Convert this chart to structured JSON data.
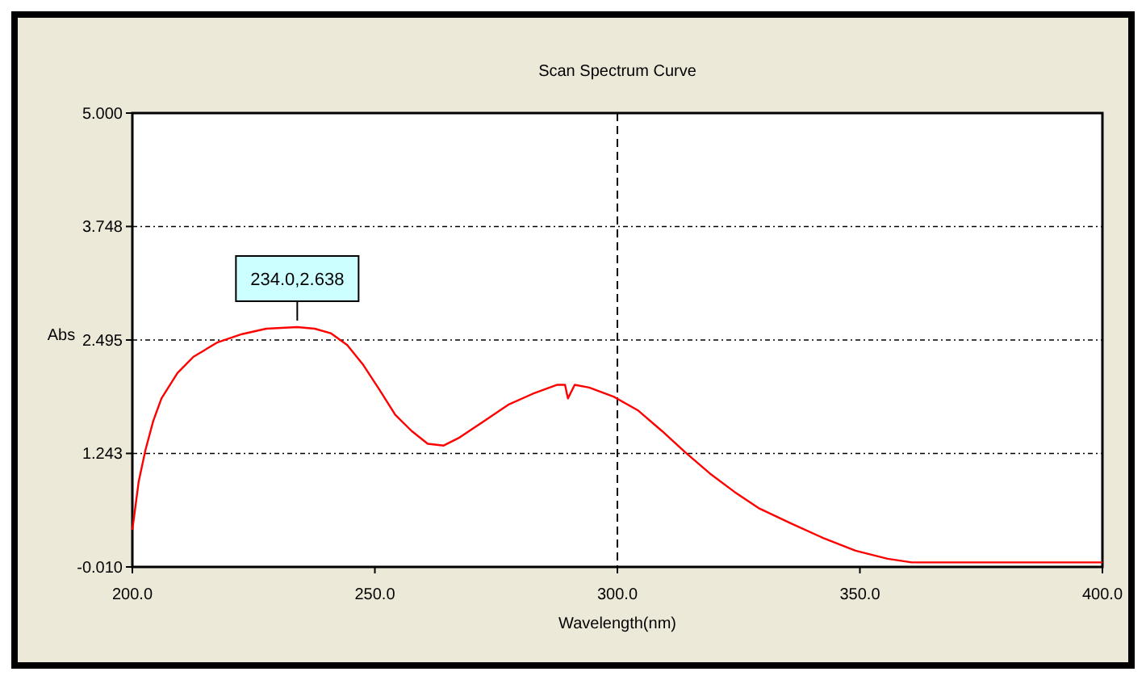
{
  "chart_data": {
    "type": "line",
    "title": "Scan Spectrum Curve",
    "xlabel": "Wavelength(nm)",
    "ylabel": "Abs",
    "x": [
      200,
      201.3,
      202.7,
      204.3,
      206,
      209.3,
      212.6,
      217.6,
      222.6,
      227.6,
      234,
      237.6,
      240.9,
      244.3,
      247.6,
      250.9,
      254.2,
      257.6,
      260.9,
      264.2,
      267.5,
      272.5,
      277.5,
      282.5,
      287.5,
      289.2,
      289.8,
      291.2,
      294.2,
      299.2,
      304.2,
      309.2,
      314.1,
      319.1,
      324.1,
      329.1,
      335.8,
      342.4,
      349.1,
      355.7,
      360.7,
      365.7,
      372.4,
      385.7,
      400
    ],
    "series": [
      {
        "color": "#ff0000",
        "values": [
          0.4,
          0.93,
          1.28,
          1.6,
          1.85,
          2.13,
          2.31,
          2.47,
          2.56,
          2.62,
          2.638,
          2.62,
          2.57,
          2.44,
          2.22,
          1.95,
          1.67,
          1.49,
          1.35,
          1.33,
          1.42,
          1.6,
          1.78,
          1.9,
          2.0,
          2.0,
          1.85,
          2.0,
          1.97,
          1.87,
          1.72,
          1.49,
          1.25,
          1.02,
          0.82,
          0.64,
          0.47,
          0.31,
          0.17,
          0.08,
          0.04,
          0.04,
          0.04,
          0.04,
          0.04
        ]
      }
    ],
    "xlim": [
      200,
      400
    ],
    "xticks": [
      {
        "value": 200,
        "label": "200.0"
      },
      {
        "value": 250,
        "label": "250.0"
      },
      {
        "value": 300,
        "label": "300.0"
      },
      {
        "value": 350,
        "label": "350.0"
      },
      {
        "value": 400,
        "label": "400.0"
      }
    ],
    "ylim": [
      -0.01,
      5
    ],
    "yticks": [
      {
        "value": -0.01,
        "label": "-0.010"
      },
      {
        "value": 1.243,
        "label": "1.243"
      },
      {
        "value": 2.495,
        "label": "2.495"
      },
      {
        "value": 3.748,
        "label": "3.748"
      },
      {
        "value": 5,
        "label": "5.000"
      }
    ],
    "grid": "y",
    "line_style": "solid",
    "ref_lines": [
      {
        "axis": "x",
        "value": 300,
        "line_style": "dashed",
        "color": "#000000"
      }
    ],
    "annotations": [
      {
        "text": "234.0,2.638",
        "x": 234,
        "y": 2.638
      }
    ]
  }
}
